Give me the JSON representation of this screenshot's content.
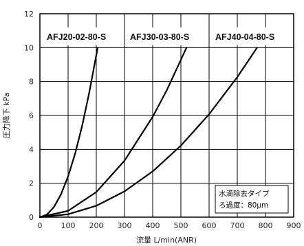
{
  "chart_data": {
    "type": "line",
    "title": "",
    "xlabel": "流量 L/min(ANR)",
    "ylabel": "圧力降下 kPa",
    "xlim": [
      0,
      900
    ],
    "ylim": [
      0,
      12
    ],
    "xticks": [
      "0",
      "100",
      "200",
      "300",
      "400",
      "500",
      "600",
      "700",
      "800",
      "900"
    ],
    "yticks": [
      "0",
      "2",
      "4",
      "6",
      "8",
      "10",
      "12"
    ],
    "grid": true,
    "series": [
      {
        "name": "AFJ20-02-80-S",
        "x": [
          0,
          25,
          50,
          75,
          100,
          125,
          150,
          175,
          205
        ],
        "y": [
          0,
          0.15,
          0.6,
          1.35,
          2.4,
          3.75,
          5.4,
          7.35,
          10
        ]
      },
      {
        "name": "AFJ30-03-80-S",
        "x": [
          0,
          100,
          200,
          300,
          400,
          450,
          520
        ],
        "y": [
          0,
          0.37,
          1.48,
          3.33,
          5.92,
          7.49,
          10
        ]
      },
      {
        "name": "AFJ40-04-80-S",
        "x": [
          0,
          100,
          200,
          300,
          400,
          500,
          600,
          700,
          770
        ],
        "y": [
          0,
          0.17,
          0.67,
          1.52,
          2.7,
          4.22,
          6.07,
          8.26,
          10
        ]
      }
    ],
    "note": [
      "水滴除去タイプ",
      "ろ過度：80μm"
    ]
  }
}
